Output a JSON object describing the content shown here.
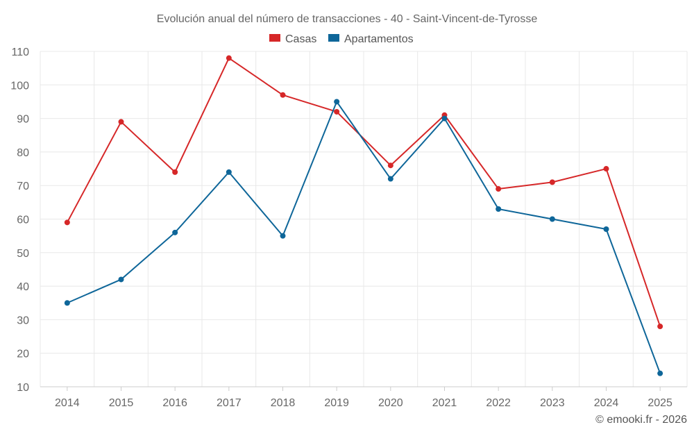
{
  "chart_data": {
    "type": "line",
    "title": "Evolución anual del número de transacciones - 40 - Saint-Vincent-de-Tyrosse",
    "categories": [
      "2014",
      "2015",
      "2016",
      "2017",
      "2018",
      "2019",
      "2020",
      "2021",
      "2022",
      "2023",
      "2024",
      "2025"
    ],
    "series": [
      {
        "name": "Casas",
        "color": "#d62728",
        "values": [
          59,
          89,
          74,
          108,
          97,
          92,
          76,
          91,
          69,
          71,
          75,
          28
        ]
      },
      {
        "name": "Apartamentos",
        "color": "#0e6699",
        "values": [
          35,
          42,
          56,
          74,
          55,
          95,
          72,
          90,
          63,
          60,
          57,
          14
        ]
      }
    ],
    "ylim": [
      10,
      110
    ],
    "yticks": [
      10,
      20,
      30,
      40,
      50,
      60,
      70,
      80,
      90,
      100,
      110
    ],
    "xlabel": "",
    "ylabel": "",
    "grid": true,
    "legend": "top-center"
  },
  "credit": "© emooki.fr - 2026"
}
